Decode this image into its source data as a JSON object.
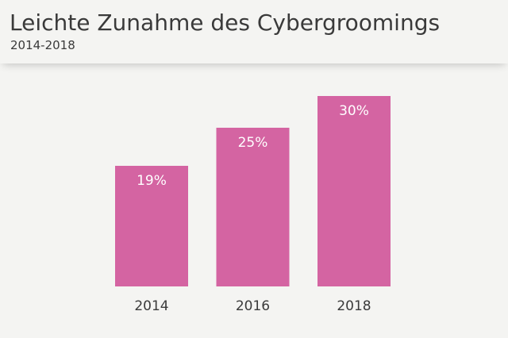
{
  "header": {
    "title": "Leichte Zunahme des Cybergroomings",
    "subtitle": "2014-2018"
  },
  "colors": {
    "background": "#f4f4f2",
    "bar": "#d464a2",
    "text": "#3a3a3a",
    "bar_label": "#ffffff"
  },
  "chart_data": {
    "type": "bar",
    "title": "Leichte Zunahme des Cybergroomings",
    "subtitle": "2014-2018",
    "categories": [
      "2014",
      "2016",
      "2018"
    ],
    "values": [
      19,
      25,
      30
    ],
    "value_labels": [
      "19%",
      "25%",
      "30%"
    ],
    "ylim": [
      0,
      34
    ],
    "grid": false,
    "legend": "none"
  }
}
